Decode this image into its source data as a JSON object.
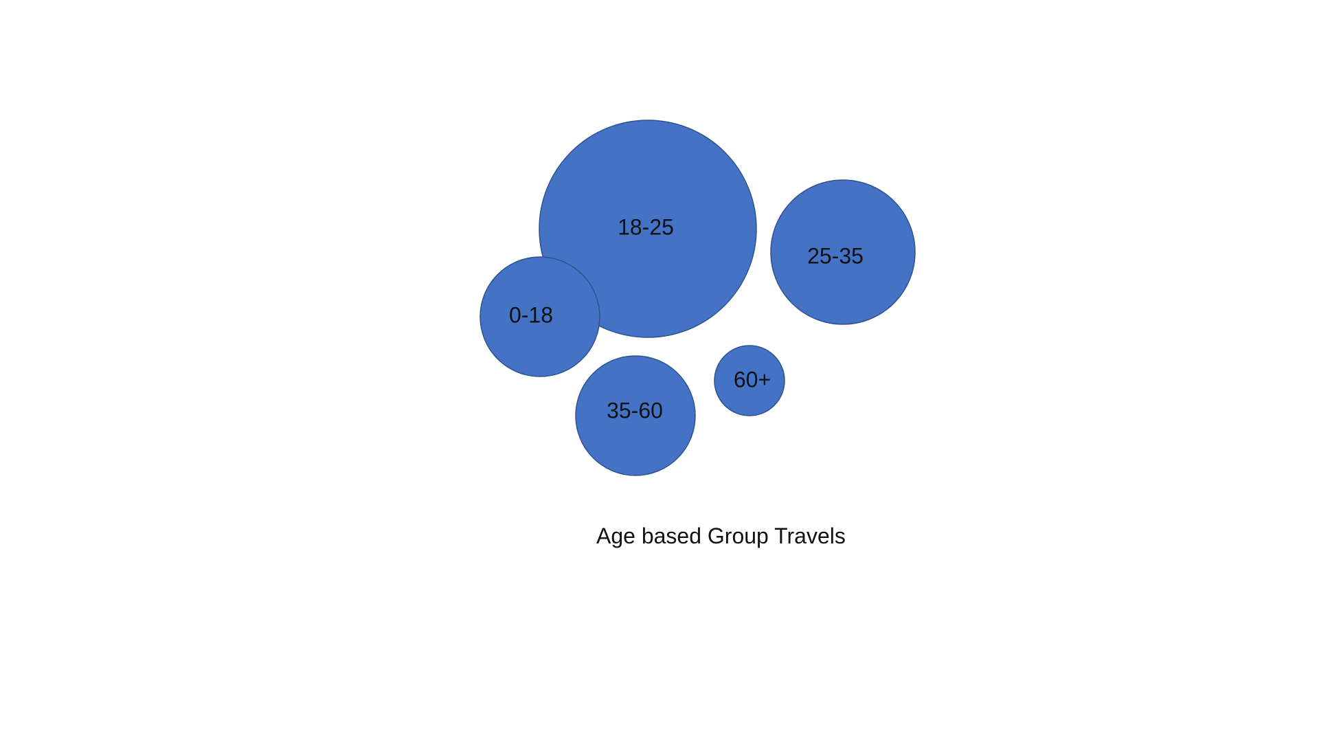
{
  "caption": "Age based Group Travels",
  "colors": {
    "bubble_fill": "#4472c4",
    "bubble_stroke": "#2f528f",
    "label_text": "#111111",
    "background": "#ffffff"
  },
  "bubbles": [
    {
      "label": "18-25",
      "relative_size": 1.0
    },
    {
      "label": "0-18",
      "relative_size": 0.55
    },
    {
      "label": "25-35",
      "relative_size": 0.66
    },
    {
      "label": "35-60",
      "relative_size": 0.55
    },
    {
      "label": "60+",
      "relative_size": 0.33
    }
  ]
}
